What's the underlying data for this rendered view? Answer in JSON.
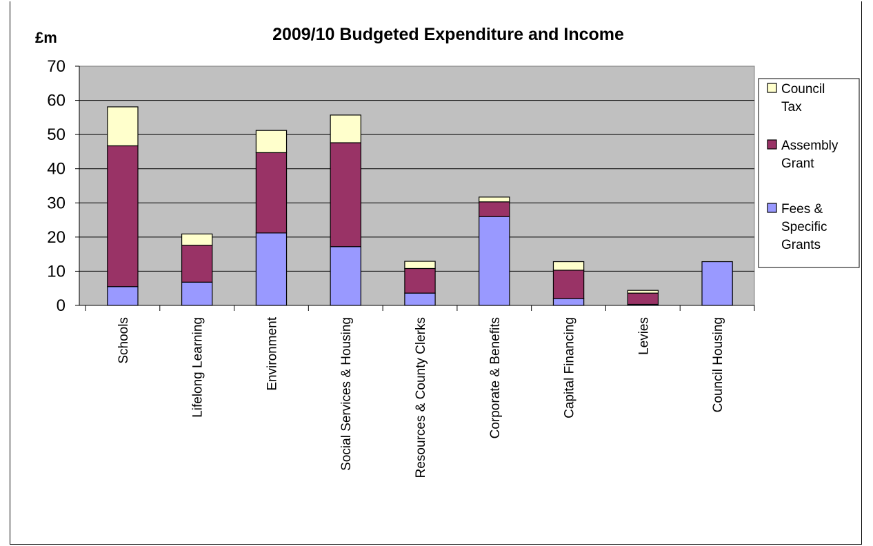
{
  "chart_data": {
    "type": "bar",
    "stacked": true,
    "title": "2009/10 Budgeted Expenditure and Income",
    "unit_label": "£m",
    "xlabel": "",
    "ylabel": "",
    "ylim": [
      0,
      70
    ],
    "yticks": [
      "0",
      "10",
      "20",
      "30",
      "40",
      "50",
      "60",
      "70"
    ],
    "grid": true,
    "legend_position": "right",
    "plot_background": "#c0c0c0",
    "categories": [
      "Schools",
      "Lifelong Learning",
      "Environment",
      "Social Services & Housing",
      "Resources & County Clerks",
      "Corporate & Benefits",
      "Capital Financing",
      "Levies",
      "Council Housing"
    ],
    "series": [
      {
        "name": "Fees & Specific Grants",
        "color": "#9999ff",
        "values": [
          5.5,
          6.8,
          21.2,
          17.2,
          3.6,
          26.0,
          2.0,
          0.3,
          12.8
        ]
      },
      {
        "name": "Assembly Grant",
        "color": "#993366",
        "values": [
          41.2,
          10.8,
          23.5,
          30.4,
          7.2,
          4.3,
          8.3,
          3.3,
          0
        ]
      },
      {
        "name": "Council Tax",
        "color": "#ffffcc",
        "values": [
          11.4,
          3.3,
          6.5,
          8.1,
          2.1,
          1.4,
          2.5,
          0.8,
          0
        ]
      }
    ],
    "legend": [
      {
        "lines": [
          "Council",
          "Tax"
        ],
        "color": "#ffffcc"
      },
      {
        "lines": [
          "Assembly",
          "Grant"
        ],
        "color": "#993366"
      },
      {
        "lines": [
          "Fees &",
          "Specific",
          "Grants"
        ],
        "color": "#9999ff"
      }
    ]
  }
}
